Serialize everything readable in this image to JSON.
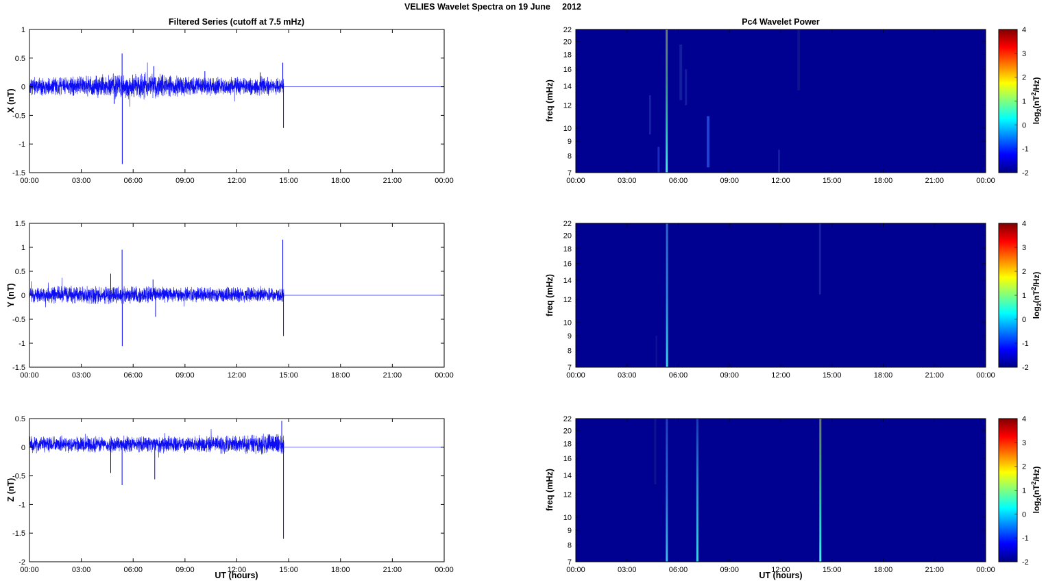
{
  "figure_title": "VELIES Wavelet Spectra on 19 June     2012",
  "time_axis": {
    "tick_labels": [
      "00:00",
      "03:00",
      "06:00",
      "09:00",
      "12:00",
      "15:00",
      "18:00",
      "21:00",
      "00:00"
    ],
    "tick_hours": [
      0,
      3,
      6,
      9,
      12,
      15,
      18,
      21,
      24
    ],
    "range_hours": [
      0,
      24
    ]
  },
  "chart_data": [
    {
      "type": "line",
      "id": "ts-x",
      "title": "Filtered Series (cutoff at 7.5 mHz)",
      "ylabel": "X (nT)",
      "xlabel": "",
      "ylim": [
        -1.5,
        1
      ],
      "ytick_labels": [
        "1",
        "0.5",
        "0",
        "-0.5",
        "-1",
        "-1.5"
      ],
      "yticks": [
        1,
        0.5,
        0,
        -0.5,
        -1,
        -1.5
      ],
      "line_color": "#0000f2",
      "flat_tail_color": "#5a5aff",
      "noise": {
        "amp": 0.11,
        "base": 0.01,
        "end_hour": 14.72,
        "seed": 11,
        "bump": 0.45,
        "bump_center": 6.2,
        "bump_sigma": 1.8
      },
      "spikes": [
        {
          "t": 4.9,
          "y": -0.3
        },
        {
          "t": 5.36,
          "y": 0.58
        },
        {
          "t": 5.37,
          "y": -1.35
        },
        {
          "t": 7.2,
          "y": 0.36
        },
        {
          "t": 10.15,
          "y": 0.27
        },
        {
          "t": 13.35,
          "y": 0.25
        },
        {
          "t": 14.66,
          "y": 0.42
        },
        {
          "t": 14.7,
          "y": -0.72
        }
      ],
      "flat_tail_value": 0
    },
    {
      "type": "line",
      "id": "ts-y",
      "title": "",
      "ylabel": "Y (nT)",
      "xlabel": "",
      "ylim": [
        -1.5,
        1.5
      ],
      "ytick_labels": [
        "1.5",
        "1",
        "0.5",
        "0",
        "-0.5",
        "-1",
        "-1.5"
      ],
      "yticks": [
        1.5,
        1,
        0.5,
        0,
        -0.5,
        -1,
        -1.5
      ],
      "line_color": "#0000f2",
      "flat_tail_color": "#5a5aff",
      "noise": {
        "amp": 0.11,
        "base": 0.01,
        "end_hour": 14.72,
        "seed": 23,
        "bump": 0.15,
        "bump_center": 3.0,
        "bump_sigma": 3.0
      },
      "spikes": [
        {
          "t": 4.7,
          "y": 0.45
        },
        {
          "t": 5.36,
          "y": 0.95
        },
        {
          "t": 5.37,
          "y": -1.06
        },
        {
          "t": 7.15,
          "y": 0.33
        },
        {
          "t": 7.3,
          "y": -0.45
        },
        {
          "t": 14.66,
          "y": 1.16
        },
        {
          "t": 14.7,
          "y": -0.85
        }
      ],
      "flat_tail_value": 0
    },
    {
      "type": "line",
      "id": "ts-z",
      "title": "",
      "ylabel": "Z (nT)",
      "xlabel": "UT (hours)",
      "ylim": [
        -2,
        0.5
      ],
      "ytick_labels": [
        "0.5",
        "0",
        "-0.5",
        "-1",
        "-1.5",
        "-2"
      ],
      "yticks": [
        0.5,
        0,
        -0.5,
        -1,
        -1.5,
        -2
      ],
      "line_color": "#0000f2",
      "flat_tail_color": "#5a5aff",
      "noise": {
        "amp": 0.1,
        "base": 0.05,
        "end_hour": 14.72,
        "seed": 37,
        "bump": 0.22,
        "bump_center": 13.8,
        "bump_sigma": 1.8
      },
      "spikes": [
        {
          "t": 4.7,
          "y": -0.45
        },
        {
          "t": 5.36,
          "y": -0.66
        },
        {
          "t": 7.25,
          "y": -0.56
        },
        {
          "t": 14.6,
          "y": 0.46
        },
        {
          "t": 14.7,
          "y": -1.6
        }
      ],
      "flat_tail_value": 0
    },
    {
      "type": "heatmap",
      "id": "wt-x",
      "title": "Pc4 Wavelet Power",
      "ylabel": "freq (mHz)",
      "xlabel": "",
      "freq_range_mhz": [
        7,
        22
      ],
      "ytick_labels": [
        "22",
        "20",
        "18",
        "16",
        "14",
        "12",
        "10",
        "9",
        "8",
        "7"
      ],
      "yticks": [
        22,
        20,
        18,
        16,
        14,
        12,
        10,
        9,
        8,
        7
      ],
      "background": "#000091",
      "events": [
        {
          "t": 4.35,
          "f1": 9.5,
          "f2": 13.0,
          "color": "#13209f",
          "width": 3
        },
        {
          "t": 4.85,
          "f1": 7.0,
          "f2": 8.6,
          "color": "#1a2cc0",
          "width": 3
        },
        {
          "t": 5.32,
          "full": true,
          "width": 3,
          "stops": [
            [
              "0",
              "#6b7a68"
            ],
            [
              "0.35",
              "#3f9478"
            ],
            [
              "0.65",
              "#27bfa0"
            ],
            [
              "0.85",
              "#2adcc0"
            ],
            [
              "1",
              "#48ecd8"
            ]
          ]
        },
        {
          "t": 6.15,
          "f1": 12.5,
          "f2": 19.5,
          "color": "#131f9f",
          "width": 4
        },
        {
          "t": 6.45,
          "f1": 12.0,
          "f2": 16.0,
          "color": "#121da0",
          "width": 3
        },
        {
          "t": 7.75,
          "f1": 7.3,
          "f2": 11.0,
          "color": "#2242d6",
          "width": 4
        },
        {
          "t": 11.9,
          "f1": 7.0,
          "f2": 8.4,
          "color": "#121da0",
          "width": 3
        },
        {
          "t": 13.05,
          "f1": 13.5,
          "f2": 22.0,
          "color": "#0e128f",
          "width": 4
        }
      ]
    },
    {
      "type": "heatmap",
      "id": "wt-y",
      "title": "",
      "ylabel": "freq (mHz)",
      "xlabel": "",
      "freq_range_mhz": [
        7,
        22
      ],
      "ytick_labels": [
        "22",
        "20",
        "18",
        "16",
        "14",
        "12",
        "10",
        "9",
        "8",
        "7"
      ],
      "yticks": [
        22,
        20,
        18,
        16,
        14,
        12,
        10,
        9,
        8,
        7
      ],
      "background": "#000091",
      "events": [
        {
          "t": 4.72,
          "f1": 7.0,
          "f2": 9.0,
          "color": "#0e149a",
          "width": 2
        },
        {
          "t": 5.34,
          "full": true,
          "width": 3,
          "stops": [
            [
              "0",
              "#2e62c8"
            ],
            [
              "0.5",
              "#2f86dc"
            ],
            [
              "0.8",
              "#35b4e4"
            ],
            [
              "1",
              "#3fd4ea"
            ]
          ]
        },
        {
          "t": 14.3,
          "f1": 12.5,
          "f2": 22.0,
          "color": "#16229f",
          "width": 3
        }
      ]
    },
    {
      "type": "heatmap",
      "id": "wt-z",
      "title": "",
      "ylabel": "freq (mHz)",
      "xlabel": "UT (hours)",
      "freq_range_mhz": [
        7,
        22
      ],
      "ytick_labels": [
        "22",
        "20",
        "18",
        "16",
        "14",
        "12",
        "10",
        "9",
        "8",
        "7"
      ],
      "yticks": [
        22,
        20,
        18,
        16,
        14,
        12,
        10,
        9,
        8,
        7
      ],
      "background": "#000091",
      "events": [
        {
          "t": 4.65,
          "f1": 13.0,
          "f2": 22.0,
          "color": "#0e138f",
          "width": 3
        },
        {
          "t": 5.33,
          "full": true,
          "width": 3,
          "stops": [
            [
              "0",
              "#1f3fbe"
            ],
            [
              "0.5",
              "#2a6fd4"
            ],
            [
              "1",
              "#38c2e6"
            ]
          ]
        },
        {
          "t": 7.12,
          "full": true,
          "width": 3,
          "stops": [
            [
              "0",
              "#1c38b8"
            ],
            [
              "0.45",
              "#2f86dc"
            ],
            [
              "1",
              "#3ed2ea"
            ]
          ]
        },
        {
          "t": 14.32,
          "full": true,
          "width": 3,
          "stops": [
            [
              "0",
              "#6b7a68"
            ],
            [
              "0.3",
              "#49a070"
            ],
            [
              "0.6",
              "#2cc8a4"
            ],
            [
              "0.85",
              "#28e4c8"
            ],
            [
              "1",
              "#50f0e0"
            ]
          ]
        }
      ]
    }
  ],
  "colorbar": {
    "min": -2,
    "max": 4,
    "tick_labels": [
      "4",
      "3",
      "2",
      "1",
      "0",
      "-1",
      "-2"
    ],
    "tick_values": [
      4,
      3,
      2,
      1,
      0,
      -1,
      -2
    ],
    "label": {
      "prefix": "log",
      "sub": "2",
      "mid": "(nT",
      "sup": "2",
      "suffix": "/Hz)"
    },
    "gradient": [
      [
        "0",
        "#7f0000"
      ],
      [
        "0.125",
        "#ff0000"
      ],
      [
        "0.375",
        "#ffff00"
      ],
      [
        "0.625",
        "#00ffff"
      ],
      [
        "0.875",
        "#0000ff"
      ],
      [
        "1",
        "#000084"
      ]
    ]
  }
}
